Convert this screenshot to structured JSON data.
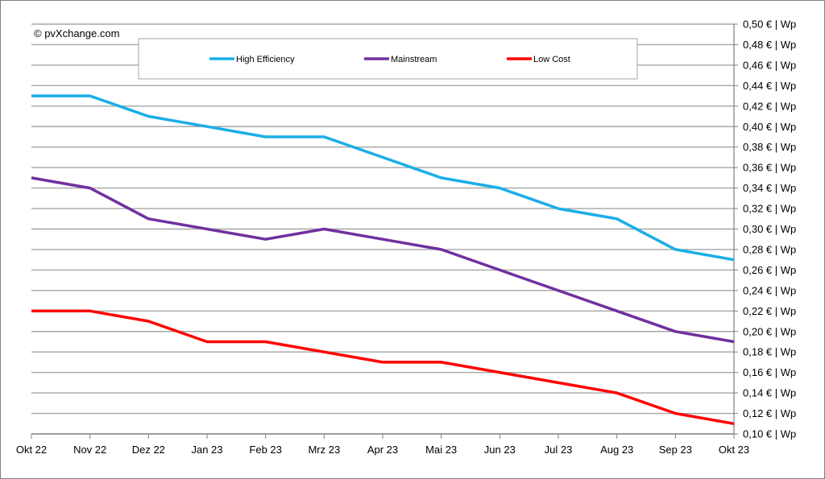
{
  "chart_data": {
    "type": "line",
    "copyright": "© pvXchange.com",
    "categories": [
      "Okt 22",
      "Nov 22",
      "Dez 22",
      "Jan 23",
      "Feb 23",
      "Mrz 23",
      "Apr 23",
      "Mai 23",
      "Jun 23",
      "Jul 23",
      "Aug 23",
      "Sep 23",
      "Okt 23"
    ],
    "ylim": [
      0.1,
      0.5
    ],
    "ystep": 0.02,
    "ytick_labels": [
      "0,10 € | Wp",
      "0,12 € | Wp",
      "0,14 € | Wp",
      "0,16 € | Wp",
      "0,18 € | Wp",
      "0,20 € | Wp",
      "0,22 € | Wp",
      "0,24 € | Wp",
      "0,26 € | Wp",
      "0,28 € | Wp",
      "0,30 € | Wp",
      "0,32 € | Wp",
      "0,34 € | Wp",
      "0,36 € | Wp",
      "0,38 € | Wp",
      "0,40 € | Wp",
      "0,42 € | Wp",
      "0,44 € | Wp",
      "0,46 € | Wp",
      "0,48 € | Wp",
      "0,50 € | Wp"
    ],
    "yaxis_position": "right",
    "grid": true,
    "legend_position": "top",
    "series": [
      {
        "name": "High Efficiency",
        "color": "#1aaee8",
        "values": [
          0.43,
          0.43,
          0.41,
          0.4,
          0.39,
          0.39,
          0.37,
          0.35,
          0.34,
          0.32,
          0.31,
          0.28,
          0.27
        ]
      },
      {
        "name": "Mainstream",
        "color": "#7030a0",
        "values": [
          0.35,
          0.34,
          0.31,
          0.3,
          0.29,
          0.3,
          0.29,
          0.28,
          0.26,
          0.24,
          0.22,
          0.2,
          0.19
        ]
      },
      {
        "name": "Low Cost",
        "color": "#ff0000",
        "values": [
          0.22,
          0.22,
          0.21,
          0.19,
          0.19,
          0.18,
          0.17,
          0.17,
          0.16,
          0.15,
          0.14,
          0.12,
          0.11
        ]
      }
    ]
  }
}
